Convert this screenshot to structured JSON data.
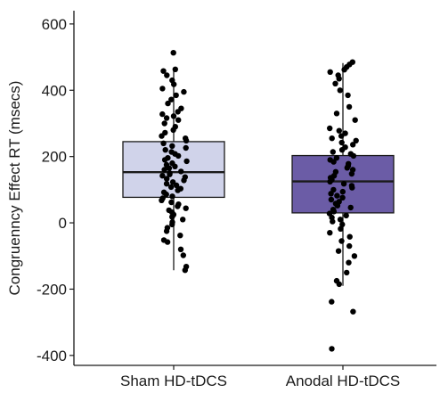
{
  "chart_data": {
    "type": "box",
    "ylabel": "Congruenncy Effect RT (msecs)",
    "xlabel": "",
    "ylim": [
      -430,
      640
    ],
    "yticks": [
      -400,
      -200,
      0,
      200,
      400,
      600
    ],
    "grid": false,
    "categories": [
      "Sham HD-tDCS",
      "Anodal HD-tDCS"
    ],
    "boxes": [
      {
        "name": "Sham HD-tDCS",
        "fill": "#d0d3ea",
        "stats": {
          "min": -143,
          "q1": 77,
          "median": 153,
          "q3": 245,
          "max": 462
        },
        "points": [
          513,
          463,
          458,
          445,
          430,
          418,
          405,
          395,
          385,
          372,
          360,
          345,
          335,
          328,
          322,
          316,
          310,
          300,
          290,
          280,
          272,
          262,
          255,
          248,
          240,
          232,
          226,
          220,
          214,
          208,
          202,
          196,
          190,
          186,
          180,
          175,
          170,
          165,
          160,
          155,
          150,
          146,
          142,
          138,
          133,
          128,
          123,
          118,
          113,
          108,
          103,
          98,
          92,
          86,
          80,
          74,
          68,
          62,
          56,
          50,
          44,
          38,
          32,
          25,
          18,
          10,
          2,
          -5,
          -15,
          -25,
          -38,
          -52,
          -58,
          -80,
          -98,
          -132,
          -143
        ]
      },
      {
        "name": "Anodal HD-tDCS",
        "fill": "#6b5ca6",
        "stats": {
          "min": -190,
          "q1": 30,
          "median": 125,
          "q3": 203,
          "max": 482
        },
        "points": [
          485,
          478,
          470,
          462,
          455,
          445,
          435,
          420,
          400,
          385,
          350,
          330,
          310,
          285,
          278,
          270,
          262,
          255,
          248,
          242,
          236,
          228,
          220,
          214,
          208,
          202,
          196,
          190,
          184,
          178,
          172,
          166,
          160,
          154,
          148,
          142,
          136,
          130,
          124,
          118,
          112,
          106,
          100,
          94,
          88,
          82,
          76,
          70,
          64,
          58,
          52,
          46,
          40,
          34,
          28,
          22,
          16,
          10,
          4,
          -5,
          -18,
          -30,
          -42,
          -55,
          -70,
          -85,
          -100,
          -120,
          -150,
          -175,
          -185,
          -238,
          -268,
          -380
        ]
      }
    ]
  }
}
